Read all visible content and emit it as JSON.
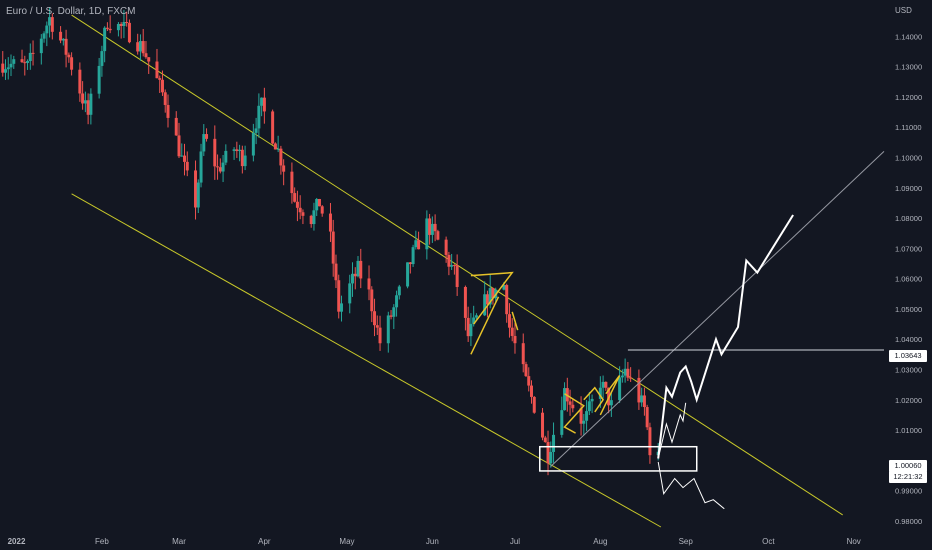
{
  "header": {
    "title": "Euro / U.S. Dollar, 1D, FXCM",
    "currency": "USD"
  },
  "badges": {
    "level": "1.03643",
    "price": "1.00060",
    "countdown": "12:21:32"
  },
  "colors": {
    "background": "#131722",
    "up": "#26a69a",
    "down": "#ef5350",
    "channel": "#c8c82a",
    "projection": "#ffffff",
    "trendline": "#9598a1",
    "axis_text": "#b2b5be"
  },
  "chart_data": {
    "type": "candlestick",
    "title": "Euro / U.S. Dollar, 1D, FXCM",
    "xlabel": "",
    "ylabel": "USD",
    "x_ticks": [
      "2022",
      "Feb",
      "Mar",
      "Apr",
      "May",
      "Jun",
      "Jul",
      "Aug",
      "Sep",
      "Oct",
      "Nov"
    ],
    "y_ticks": [
      "1.14000",
      "1.13000",
      "1.12000",
      "1.11000",
      "1.10000",
      "1.09000",
      "1.08000",
      "1.07000",
      "1.06000",
      "1.05000",
      "1.04000",
      "1.03000",
      "1.02000",
      "1.01000",
      "0.99000",
      "0.98000"
    ],
    "ylim": [
      0.977,
      1.152
    ],
    "xlim": [
      "2021-12-26",
      "2022-11-12"
    ],
    "grid": false,
    "ohlc_anchors": [
      {
        "date": "2021-12-27",
        "close": 1.131
      },
      {
        "date": "2022-01-05",
        "close": 1.13
      },
      {
        "date": "2022-01-13",
        "close": 1.146
      },
      {
        "date": "2022-01-20",
        "close": 1.133
      },
      {
        "date": "2022-01-27",
        "close": 1.114
      },
      {
        "date": "2022-02-03",
        "close": 1.145
      },
      {
        "date": "2022-02-10",
        "close": 1.142
      },
      {
        "date": "2022-02-16",
        "close": 1.136
      },
      {
        "date": "2022-02-24",
        "close": 1.119
      },
      {
        "date": "2022-03-04",
        "close": 1.093
      },
      {
        "date": "2022-03-07",
        "close": 1.085
      },
      {
        "date": "2022-03-10",
        "close": 1.107
      },
      {
        "date": "2022-03-15",
        "close": 1.096
      },
      {
        "date": "2022-03-21",
        "close": 1.103
      },
      {
        "date": "2022-03-24",
        "close": 1.1
      },
      {
        "date": "2022-03-31",
        "close": 1.117
      },
      {
        "date": "2022-04-05",
        "close": 1.105
      },
      {
        "date": "2022-04-12",
        "close": 1.086
      },
      {
        "date": "2022-04-18",
        "close": 1.08
      },
      {
        "date": "2022-04-21",
        "close": 1.085
      },
      {
        "date": "2022-04-25",
        "close": 1.073
      },
      {
        "date": "2022-04-28",
        "close": 1.05
      },
      {
        "date": "2022-05-05",
        "close": 1.063
      },
      {
        "date": "2022-05-09",
        "close": 1.055
      },
      {
        "date": "2022-05-13",
        "close": 1.039
      },
      {
        "date": "2022-05-18",
        "close": 1.05
      },
      {
        "date": "2022-05-25",
        "close": 1.068
      },
      {
        "date": "2022-05-30",
        "close": 1.078
      },
      {
        "date": "2022-06-02",
        "close": 1.074
      },
      {
        "date": "2022-06-09",
        "close": 1.062
      },
      {
        "date": "2022-06-14",
        "close": 1.041
      },
      {
        "date": "2022-06-21",
        "close": 1.054
      },
      {
        "date": "2022-06-27",
        "close": 1.058
      },
      {
        "date": "2022-06-29",
        "close": 1.044
      },
      {
        "date": "2022-07-05",
        "close": 1.026
      },
      {
        "date": "2022-07-08",
        "close": 1.018
      },
      {
        "date": "2022-07-13",
        "close": 1.002
      },
      {
        "date": "2022-07-19",
        "close": 1.023
      },
      {
        "date": "2022-07-26",
        "close": 1.012
      },
      {
        "date": "2022-08-01",
        "close": 1.026
      },
      {
        "date": "2022-08-05",
        "close": 1.018
      },
      {
        "date": "2022-08-10",
        "close": 1.03
      },
      {
        "date": "2022-08-12",
        "close": 1.026
      },
      {
        "date": "2022-08-17",
        "close": 1.017
      },
      {
        "date": "2022-08-19",
        "close": 1.004
      },
      {
        "date": "2022-08-22",
        "close": 1.0006
      }
    ],
    "annotations": {
      "channel_upper": [
        [
          "2022-01-21",
          1.147
        ],
        [
          "2022-10-28",
          0.982
        ]
      ],
      "channel_lower": [
        [
          "2022-01-21",
          1.088
        ],
        [
          "2022-08-23",
          0.978
        ]
      ],
      "trendline": [
        [
          "2022-07-14",
          0.998
        ],
        [
          "2022-11-12",
          1.102
        ]
      ],
      "horizontal_level": [
        [
          "2022-08-11",
          1.03643
        ],
        [
          "2022-11-12",
          1.03643
        ]
      ],
      "support_box": {
        "x": [
          "2022-07-10",
          "2022-09-05"
        ],
        "y": [
          0.9965,
          1.0045
        ]
      },
      "bullish_projection": [
        [
          "2022-08-22",
          1.0006
        ],
        [
          "2022-08-25",
          1.024
        ],
        [
          "2022-08-27",
          1.021
        ],
        [
          "2022-08-30",
          1.029
        ],
        [
          "2022-09-01",
          1.031
        ],
        [
          "2022-09-03",
          1.026
        ],
        [
          "2022-09-05",
          1.02
        ],
        [
          "2022-09-12",
          1.04
        ],
        [
          "2022-09-14",
          1.035
        ],
        [
          "2022-09-20",
          1.044
        ],
        [
          "2022-09-23",
          1.066
        ],
        [
          "2022-09-27",
          1.062
        ],
        [
          "2022-10-10",
          1.081
        ]
      ],
      "bullish_short": [
        [
          "2022-08-22",
          1.0006
        ],
        [
          "2022-08-25",
          1.012
        ],
        [
          "2022-08-27",
          1.006
        ],
        [
          "2022-08-30",
          1.015
        ],
        [
          "2022-08-31",
          1.013
        ],
        [
          "2022-09-01",
          1.019
        ]
      ],
      "bearish_projection": [
        [
          "2022-08-22",
          0.9995
        ],
        [
          "2022-08-24",
          0.989
        ],
        [
          "2022-08-28",
          0.994
        ],
        [
          "2022-08-31",
          0.991
        ],
        [
          "2022-09-04",
          0.994
        ],
        [
          "2022-09-08",
          0.986
        ],
        [
          "2022-09-11",
          0.987
        ],
        [
          "2022-09-15",
          0.984
        ]
      ],
      "yellow_marks": [
        [
          [
            "2022-06-15",
            1.061
          ],
          [
            "2022-06-30",
            1.062
          ],
          [
            "2022-06-16",
            1.045
          ]
        ],
        [
          [
            "2022-06-25",
            1.054
          ],
          [
            "2022-06-15",
            1.035
          ]
        ],
        [
          [
            "2022-06-30",
            1.049
          ],
          [
            "2022-07-02",
            1.043
          ]
        ],
        [
          [
            "2022-07-19",
            1.022
          ],
          [
            "2022-07-26",
            1.018
          ],
          [
            "2022-07-19",
            1.011
          ],
          [
            "2022-07-23",
            1.009
          ]
        ],
        [
          [
            "2022-07-26",
            1.02
          ],
          [
            "2022-07-30",
            1.024
          ],
          [
            "2022-08-02",
            1.02
          ],
          [
            "2022-07-30",
            1.016
          ]
        ],
        [
          [
            "2022-08-03",
            1.022
          ],
          [
            "2022-08-08",
            1.028
          ],
          [
            "2022-08-01",
            1.015
          ]
        ]
      ]
    }
  }
}
